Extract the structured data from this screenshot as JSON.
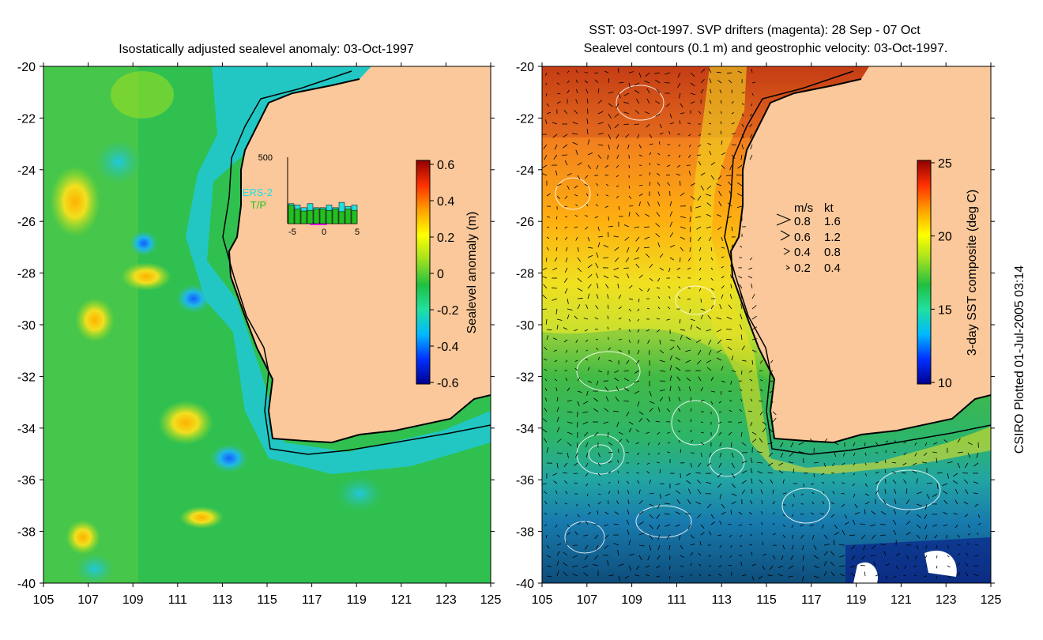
{
  "left_panel": {
    "title": "Isostatically adjusted sealevel anomaly: 03-Oct-1997",
    "lat_ticks": [
      "-20",
      "-22",
      "-24",
      "-26",
      "-28",
      "-30",
      "-32",
      "-34",
      "-36",
      "-38",
      "-40"
    ],
    "lon_ticks": [
      "105",
      "107",
      "109",
      "111",
      "113",
      "115",
      "117",
      "119",
      "121",
      "123",
      "125"
    ],
    "colorbar": {
      "label": "Sealevel anomaly (m)",
      "ticks": [
        "0.6",
        "0.4",
        "0.2",
        "0",
        "-0.2",
        "-0.4",
        "-0.6"
      ],
      "colors": [
        "#00008f",
        "#0030ff",
        "#00b8ff",
        "#20e0a0",
        "#20c040",
        "#a0e020",
        "#ffff00",
        "#ffa000",
        "#ff3000",
        "#900000"
      ]
    },
    "inset": {
      "y_max_label": "500",
      "x_ticks": [
        "-5",
        "0",
        "5"
      ],
      "legend": [
        "ERS-2",
        "T/P"
      ],
      "ers2_color": "#20e0e0",
      "tp_color": "#20c020",
      "tp_counts": [
        140,
        110,
        95,
        100,
        110,
        110,
        100,
        110,
        90,
        110,
        100
      ],
      "ers2_counts": [
        150,
        140,
        120,
        150,
        120,
        120,
        140,
        120,
        160,
        130,
        140
      ]
    },
    "ocean_color": "#30c050",
    "land_color": "#fac89a"
  },
  "right_panel": {
    "title_line1": "SST: 03-Oct-1997. SVP drifters (magenta): 28 Sep - 07 Oct",
    "title_line2": "Sealevel contours (0.1 m) and geostrophic velocity: 03-Oct-1997.",
    "lat_ticks": [
      "-20",
      "-22",
      "-24",
      "-26",
      "-28",
      "-30",
      "-32",
      "-34",
      "-36",
      "-38",
      "-40"
    ],
    "lon_ticks": [
      "105",
      "107",
      "109",
      "111",
      "113",
      "115",
      "117",
      "119",
      "121",
      "123",
      "125"
    ],
    "colorbar": {
      "label": "3-day SST composite (deg C)",
      "ticks": [
        "25",
        "20",
        "15",
        "10"
      ],
      "colors": [
        "#00008f",
        "#0030ff",
        "#00b8ff",
        "#20e0a0",
        "#20c040",
        "#a0e020",
        "#ffff00",
        "#ffa000",
        "#ff3000",
        "#900000"
      ]
    },
    "velocity_key": {
      "header_ms": "m/s",
      "header_kt": "kt",
      "rows": [
        {
          "ms": "0.8",
          "kt": "1.6"
        },
        {
          "ms": "0.6",
          "kt": "1.2"
        },
        {
          "ms": "0.4",
          "kt": "0.8"
        },
        {
          "ms": "0.2",
          "kt": "0.4"
        }
      ]
    },
    "land_color": "#fac89a"
  },
  "credit": "CSIRO Plotted 01-Jul-2005 03:14"
}
